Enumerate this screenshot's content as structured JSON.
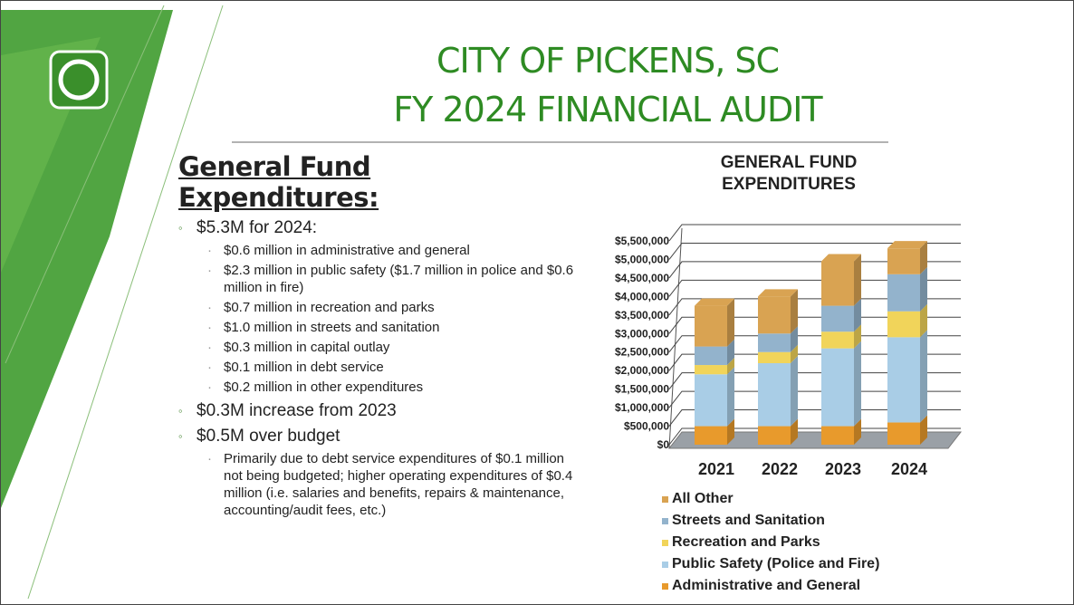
{
  "slide": {
    "title": [
      "CITY OF PICKENS, SC",
      "FY 2024 FINANCIAL AUDIT"
    ],
    "heading": "General Fund Expenditures:",
    "bullets": [
      {
        "text": "$5.3M for 2024:",
        "sub": [
          "$0.6 million in administrative and general",
          "$2.3 million in public safety ($1.7 million in police and $0.6 million in fire)",
          "$0.7 million in recreation and parks",
          "$1.0 million in streets and sanitation",
          "$0.3 million in capital outlay",
          "$0.1 million in debt service",
          "$0.2 million in other expenditures"
        ]
      },
      {
        "text": "$0.3M increase from 2023",
        "sub": []
      },
      {
        "text": "$0.5M over budget",
        "sub": [
          "Primarily due to debt service expenditures of $0.1 million not being budgeted; higher operating expenditures of $0.4 million (i.e. salaries and benefits, repairs & maintenance, accounting/audit fees, etc.)"
        ]
      }
    ]
  },
  "chart_data": {
    "type": "stacked_bar",
    "title": "GENERAL FUND EXPENDITURES",
    "categories": [
      "2021",
      "2022",
      "2023",
      "2024"
    ],
    "series": [
      {
        "name": "Administrative and General",
        "color": "#e89a2c",
        "values": [
          500000,
          500000,
          500000,
          600000
        ]
      },
      {
        "name": "Public Safety (Police and Fire)",
        "color": "#a9cde6",
        "values": [
          1400000,
          1700000,
          2100000,
          2300000
        ]
      },
      {
        "name": "Recreation and Parks",
        "color": "#f1d45a",
        "values": [
          250000,
          300000,
          450000,
          700000
        ]
      },
      {
        "name": "Streets and Sanitation",
        "color": "#93b3cc",
        "values": [
          500000,
          500000,
          700000,
          1000000
        ]
      },
      {
        "name": "All Other",
        "color": "#d9a352",
        "values": [
          1100000,
          1000000,
          1200000,
          700000
        ]
      }
    ],
    "ylim": [
      0,
      5500000
    ],
    "yticks": [
      {
        "value": 0,
        "label": "$0"
      },
      {
        "value": 500000,
        "label": "$500,000"
      },
      {
        "value": 1000000,
        "label": "$1,000,000"
      },
      {
        "value": 1500000,
        "label": "$1,500,000"
      },
      {
        "value": 2000000,
        "label": "$2,000,000"
      },
      {
        "value": 2500000,
        "label": "$2,500,000"
      },
      {
        "value": 3000000,
        "label": "$3,000,000"
      },
      {
        "value": 3500000,
        "label": "$3,500,000"
      },
      {
        "value": 4000000,
        "label": "$4,000,000"
      },
      {
        "value": 4500000,
        "label": "$4,500,000"
      },
      {
        "value": 5000000,
        "label": "$5,000,000"
      },
      {
        "value": 5500000,
        "label": "$5,500,000"
      }
    ],
    "grid": true
  }
}
